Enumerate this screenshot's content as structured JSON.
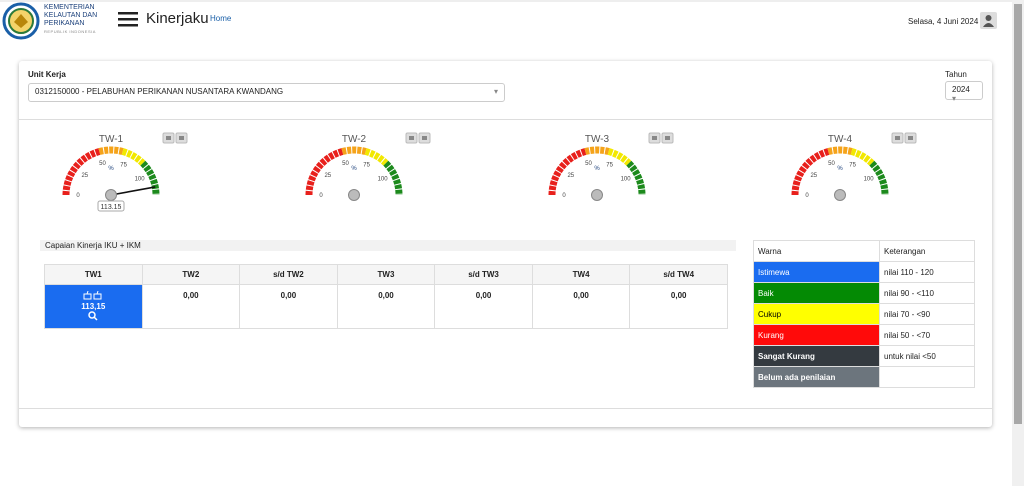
{
  "header": {
    "logo_lines": [
      "KEMENTERIAN",
      "KELAUTAN DAN",
      "PERIKANAN"
    ],
    "logo_subtitle": "REPUBLIK INDONESIA",
    "app_title": "Kinerjaku",
    "breadcrumb": "Home",
    "date": "Selasa, 4 Juni 2024"
  },
  "filter": {
    "unit_label": "Unit Kerja",
    "unit_value": "0312150000 - PELABUHAN PERIKANAN NUSANTARA KWANDANG",
    "year_label": "Tahun",
    "year_value": "2024"
  },
  "gauge_scale": {
    "min": 0,
    "max": 120,
    "ticks": [
      0,
      25,
      50,
      75,
      100
    ],
    "unit": "%",
    "bands": [
      {
        "from": 0,
        "to": 50,
        "color": "#e8201c"
      },
      {
        "from": 50,
        "to": 70,
        "color": "#f5a31a"
      },
      {
        "from": 70,
        "to": 90,
        "color": "#f2e800"
      },
      {
        "from": 90,
        "to": 120,
        "color": "#1c8a1c"
      }
    ]
  },
  "gauges": [
    {
      "title": "TW-1",
      "value": 113.15,
      "value_label": "113.15"
    },
    {
      "title": "TW-2"
    },
    {
      "title": "TW-3"
    },
    {
      "title": "TW-4"
    }
  ],
  "section_title": "Capaian Kinerja IKU + IKM",
  "achievement_table": {
    "header": [
      "TW1",
      "TW2",
      "s/d TW2",
      "TW3",
      "s/d TW3",
      "TW4",
      "s/d TW4"
    ],
    "rows": [
      [
        "113,15",
        "0,00",
        "0,00",
        "0,00",
        "0,00",
        "0,00",
        "0,00"
      ]
    ]
  },
  "legend_table": {
    "header": [
      "Warna",
      "Keterangan"
    ],
    "rows": [
      {
        "label": "Istimewa",
        "color": "#1a6cf0",
        "range": "nilai 110 - 120"
      },
      {
        "label": "Baik",
        "color": "#048a04",
        "range": "nilai 90 - <110"
      },
      {
        "label": "Cukup",
        "color": "#ffff00",
        "range": "nilai 70 - <90"
      },
      {
        "label": "Kurang",
        "color": "#ff0a0a",
        "range": "nilai 50 - <70"
      },
      {
        "label": "Sangat Kurang",
        "color": "#343a40",
        "range": "untuk nilai <50"
      },
      {
        "label": "Belum ada penilaian",
        "color": "#6c757d"
      }
    ]
  }
}
